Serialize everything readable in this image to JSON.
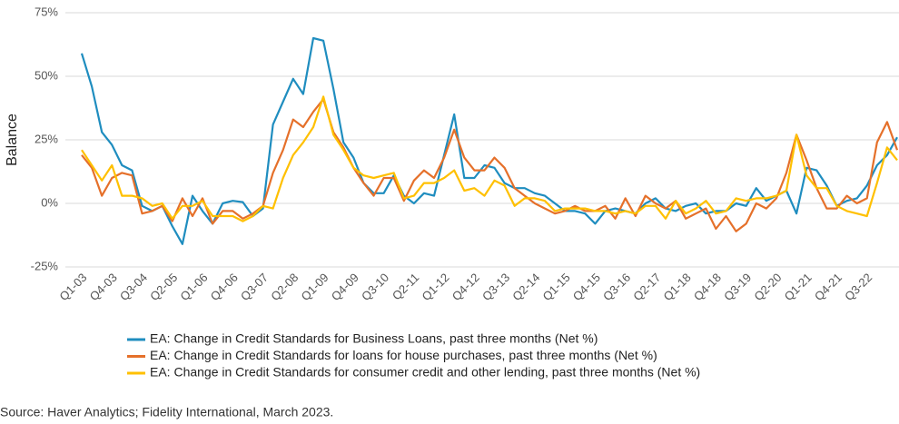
{
  "chart_data": {
    "type": "line",
    "y_label": "Balance",
    "source": "Source: Haver Analytics; Fidelity International, March 2023.",
    "categories": [
      "Q1-03",
      null,
      null,
      "Q4-03",
      null,
      null,
      "Q3-04",
      null,
      null,
      "Q2-05",
      null,
      null,
      "Q1-06",
      null,
      null,
      "Q4-06",
      null,
      null,
      "Q3-07",
      null,
      null,
      "Q2-08",
      null,
      null,
      "Q1-09",
      null,
      null,
      "Q4-09",
      null,
      null,
      "Q3-10",
      null,
      null,
      "Q2-11",
      null,
      null,
      "Q1-12",
      null,
      null,
      "Q4-12",
      null,
      null,
      "Q3-13",
      null,
      null,
      "Q2-14",
      null,
      null,
      "Q1-15",
      null,
      null,
      "Q4-15",
      null,
      null,
      "Q3-16",
      null,
      null,
      "Q2-17",
      null,
      null,
      "Q1-18",
      null,
      null,
      "Q4-18",
      null,
      null,
      "Q3-19",
      null,
      null,
      "Q2-20",
      null,
      null,
      "Q1-21",
      null,
      null,
      "Q4-21",
      null,
      null,
      "Q3-22",
      null,
      null,
      null
    ],
    "series": [
      {
        "name": "EA: Change in Credit Standards for Business Loans, past three months (Net %)",
        "color": "#1f8dbf",
        "values": [
          59,
          46,
          28,
          23,
          15,
          13,
          -1,
          -3,
          -1,
          -9,
          -16,
          3,
          -3,
          -8,
          0,
          1,
          0.5,
          -5,
          -2,
          31,
          40,
          49,
          43,
          65,
          64,
          45,
          24,
          18,
          8,
          4,
          4,
          11,
          3,
          0,
          4,
          3,
          19,
          35,
          10,
          10,
          15,
          14,
          8,
          6,
          6,
          4,
          3,
          0,
          -3,
          -3,
          -4,
          -8,
          -3,
          -2,
          -3,
          -4,
          0,
          2,
          -2,
          -3,
          -1,
          0,
          -4,
          -3,
          -3,
          0,
          -1,
          6,
          1,
          3,
          5,
          -4,
          14,
          13,
          7,
          -1,
          1,
          2,
          7,
          15,
          19,
          26
        ]
      },
      {
        "name": "EA: Change in Credit Standards for loans for house purchases, past three months (Net %)",
        "color": "#e5702a",
        "values": [
          19,
          14,
          3,
          10,
          12,
          11,
          -4,
          -3,
          -1,
          -7,
          2,
          -5,
          2,
          -8,
          -3,
          -3,
          -6,
          -4,
          -1,
          12,
          21,
          33,
          30,
          36,
          41,
          28,
          22,
          14,
          8,
          3,
          10,
          10,
          1,
          9,
          13,
          10,
          18,
          29,
          18,
          13,
          13,
          18,
          14,
          6,
          3,
          0,
          -2,
          -4,
          -3,
          -1,
          -3,
          -3,
          -1,
          -6,
          2,
          -5,
          3,
          0,
          -2,
          1,
          -6,
          -4,
          -2,
          -10,
          -5,
          -11,
          -8,
          0,
          -2,
          2,
          12,
          27,
          17,
          6,
          -2,
          -2,
          3,
          0,
          2,
          24,
          32,
          21
        ]
      },
      {
        "name": "EA: Change in Credit Standards for consumer credit and other lending, past three months (Net %)",
        "color": "#ffc000",
        "values": [
          21,
          15,
          9,
          15,
          3,
          3,
          2,
          -1,
          0,
          -6,
          -1,
          -1,
          1,
          -5,
          -5,
          -5,
          -7,
          -5,
          -1,
          -2,
          10,
          19,
          24,
          30,
          42,
          27,
          21,
          14,
          11,
          10,
          11,
          12,
          2,
          3,
          8,
          8,
          10,
          13,
          5,
          6,
          3,
          9,
          7,
          -1,
          2,
          2,
          1,
          -3,
          -2,
          -2,
          -2,
          -3,
          -3,
          -4,
          -3,
          -4,
          -1,
          -1,
          -6,
          1,
          -4,
          -2,
          1,
          -4,
          -3,
          2,
          1,
          2,
          2,
          3,
          5,
          27,
          11,
          6,
          6,
          -1,
          -3,
          -4,
          -5,
          8,
          22,
          17
        ]
      }
    ],
    "ylim": [
      -25,
      75
    ],
    "yticks": [
      {
        "value": -25,
        "label": "-25%"
      },
      {
        "value": 0,
        "label": "0%"
      },
      {
        "value": 25,
        "label": "25%"
      },
      {
        "value": 50,
        "label": "50%"
      },
      {
        "value": 75,
        "label": "75%"
      }
    ],
    "grid": true
  }
}
